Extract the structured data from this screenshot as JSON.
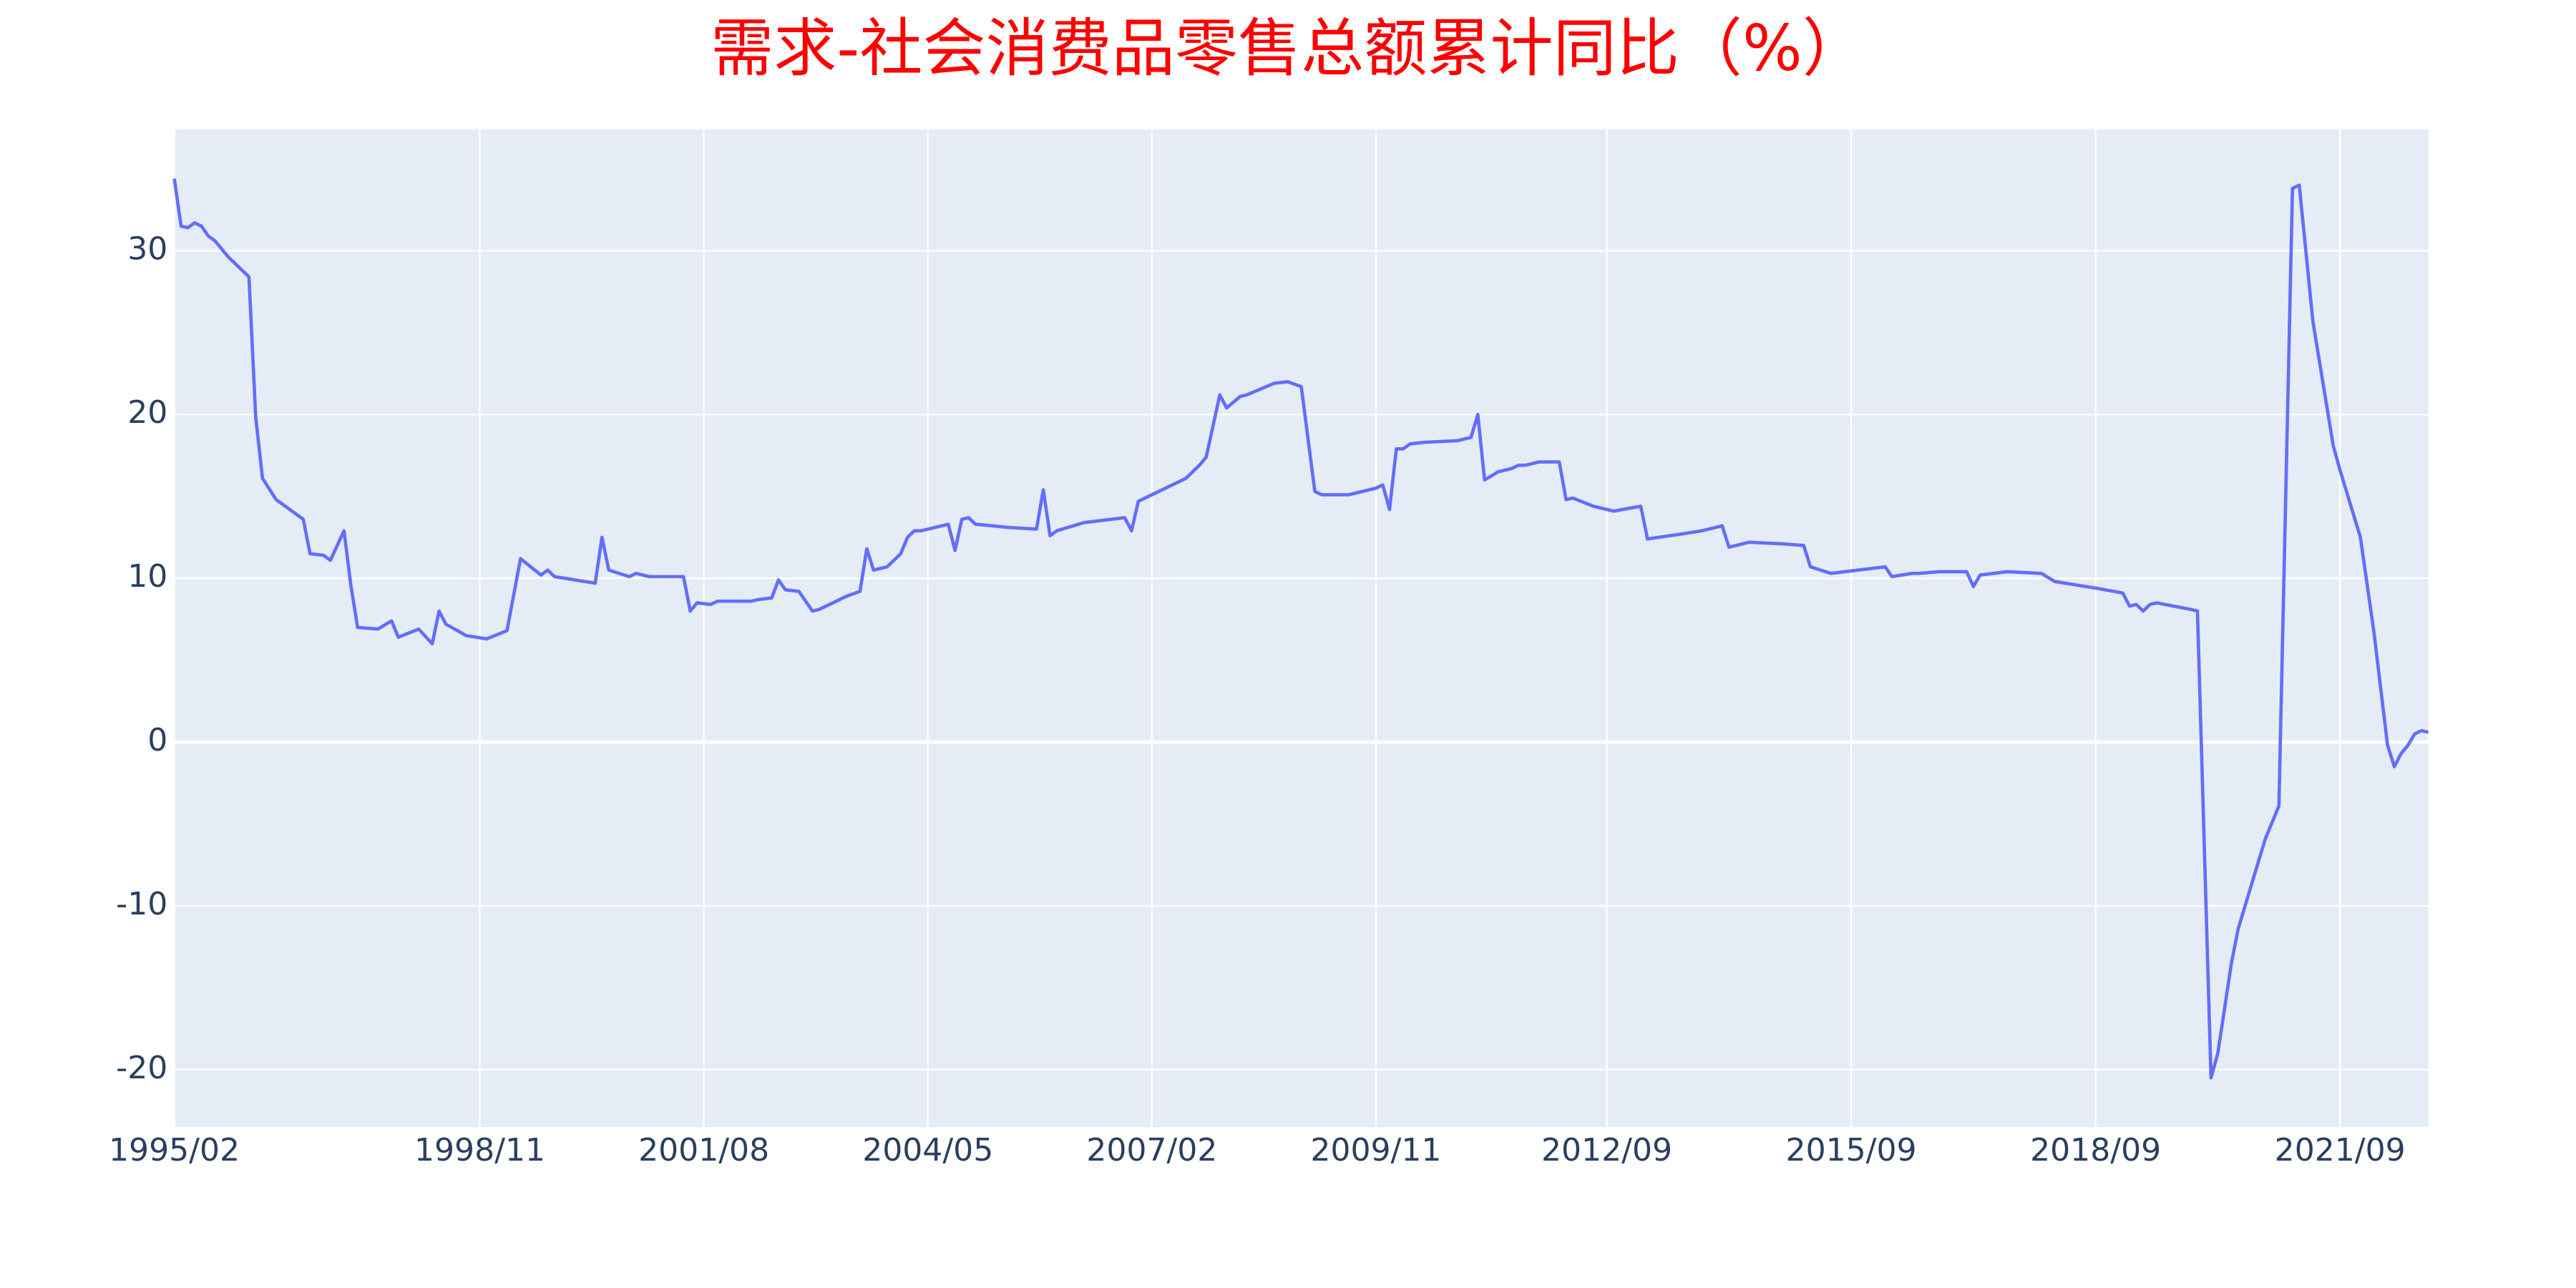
{
  "chart_data": {
    "type": "line",
    "title": "需求-社会消费品零售总额累计同比（%）",
    "color": "#636efa",
    "grid": true,
    "xlim": [
      "1995/02",
      "2022/10"
    ],
    "xticks": [
      "1995/02",
      "1998/11",
      "2001/08",
      "2004/05",
      "2007/02",
      "2009/11",
      "2012/09",
      "2015/09",
      "2018/09",
      "2021/09"
    ],
    "ylim": [
      -23.5,
      37.4
    ],
    "yticks": [
      -20,
      -10,
      0,
      10,
      20,
      30
    ],
    "x": [
      "1995/02",
      "1995/03",
      "1995/04",
      "1995/05",
      "1995/06",
      "1995/07",
      "1995/08",
      "1995/10",
      "1996/01",
      "1996/02",
      "1996/03",
      "1996/05",
      "1996/09",
      "1996/10",
      "1996/12",
      "1997/01",
      "1997/03",
      "1997/04",
      "1997/05",
      "1997/08",
      "1997/10",
      "1997/11",
      "1998/02",
      "1998/04",
      "1998/05",
      "1998/06",
      "1998/09",
      "1998/12",
      "1999/03",
      "1999/05",
      "1999/08",
      "1999/09",
      "1999/10",
      "2000/01",
      "2000/04",
      "2000/05",
      "2000/06",
      "2000/09",
      "2000/10",
      "2000/12",
      "2001/05",
      "2001/06",
      "2001/07",
      "2001/09",
      "2001/10",
      "2002/03",
      "2002/04",
      "2002/06",
      "2002/07",
      "2002/08",
      "2002/10",
      "2002/11",
      "2002/12",
      "2003/01",
      "2003/03",
      "2003/05",
      "2003/07",
      "2003/08",
      "2003/09",
      "2003/11",
      "2004/01",
      "2004/02",
      "2004/03",
      "2004/04",
      "2004/08",
      "2004/09",
      "2004/10",
      "2004/11",
      "2004/12",
      "2005/05",
      "2005/09",
      "2005/10",
      "2005/11",
      "2005/12",
      "2006/04",
      "2006/10",
      "2006/11",
      "2006/12",
      "2007/04",
      "2007/07",
      "2007/09",
      "2007/10",
      "2007/12",
      "2008/01",
      "2008/03",
      "2008/04",
      "2008/08",
      "2008/10",
      "2008/12",
      "2009/02",
      "2009/03",
      "2009/07",
      "2009/11",
      "2009/12",
      "2010/01",
      "2010/02",
      "2010/03",
      "2010/04",
      "2010/06",
      "2010/11",
      "2011/01",
      "2011/02",
      "2011/03",
      "2011/05",
      "2011/07",
      "2011/08",
      "2011/09",
      "2011/11",
      "2012/02",
      "2012/03",
      "2012/04",
      "2012/07",
      "2012/10",
      "2013/02",
      "2013/03",
      "2013/08",
      "2013/11",
      "2014/02",
      "2014/03",
      "2014/06",
      "2014/11",
      "2015/02",
      "2015/03",
      "2015/06",
      "2016/02",
      "2016/03",
      "2016/06",
      "2016/07",
      "2016/10",
      "2017/02",
      "2017/03",
      "2017/04",
      "2017/08",
      "2018/01",
      "2018/03",
      "2018/09",
      "2019/01",
      "2019/02",
      "2019/03",
      "2019/04",
      "2019/05",
      "2019/06",
      "2019/11",
      "2019/12",
      "2020/02",
      "2020/03",
      "2020/05",
      "2020/06",
      "2020/10",
      "2020/12",
      "2021/02",
      "2021/03",
      "2021/05",
      "2021/08",
      "2021/09",
      "2021/12",
      "2022/02",
      "2022/04",
      "2022/05",
      "2022/06",
      "2022/07",
      "2022/08",
      "2022/09",
      "2022/10"
    ],
    "values": [
      34.4,
      31.5,
      31.4,
      31.7,
      31.5,
      30.9,
      30.6,
      29.6,
      28.4,
      19.8,
      16.1,
      14.8,
      13.6,
      11.5,
      11.4,
      11.1,
      12.9,
      9.6,
      7.0,
      6.9,
      7.4,
      6.4,
      6.9,
      6.0,
      8.0,
      7.2,
      6.5,
      6.3,
      6.8,
      11.2,
      10.2,
      10.5,
      10.1,
      9.9,
      9.7,
      12.5,
      10.5,
      10.1,
      10.3,
      10.1,
      10.1,
      8.0,
      8.5,
      8.4,
      8.6,
      8.6,
      8.7,
      8.8,
      9.9,
      9.3,
      9.2,
      8.6,
      8.0,
      8.1,
      8.5,
      8.9,
      9.2,
      11.8,
      10.5,
      10.7,
      11.5,
      12.5,
      12.9,
      12.9,
      13.3,
      11.7,
      13.6,
      13.7,
      13.3,
      13.1,
      13.0,
      15.4,
      12.6,
      12.9,
      13.4,
      13.7,
      12.9,
      14.7,
      15.5,
      16.1,
      16.9,
      17.4,
      21.2,
      20.4,
      21.1,
      21.2,
      21.9,
      22.0,
      21.7,
      15.3,
      15.1,
      15.1,
      15.5,
      15.7,
      14.2,
      17.9,
      17.9,
      18.2,
      18.3,
      18.4,
      18.6,
      20.0,
      16.0,
      16.5,
      16.7,
      16.9,
      16.9,
      17.1,
      17.1,
      14.8,
      14.9,
      14.4,
      14.1,
      14.4,
      12.4,
      12.7,
      12.9,
      13.2,
      11.9,
      12.2,
      12.1,
      12.0,
      10.7,
      10.3,
      10.7,
      10.1,
      10.3,
      10.3,
      10.4,
      10.4,
      9.5,
      10.2,
      10.4,
      10.3,
      9.8,
      9.4,
      9.1,
      8.3,
      8.4,
      8.0,
      8.4,
      8.5,
      8.1,
      8.0,
      -20.5,
      -19.0,
      -13.5,
      -11.4,
      -5.9,
      -3.9,
      33.8,
      34.0,
      25.7,
      18.1,
      16.6,
      12.5,
      6.7,
      -0.2,
      -1.5,
      -0.7,
      -0.2,
      0.5,
      0.7,
      0.6
    ]
  }
}
